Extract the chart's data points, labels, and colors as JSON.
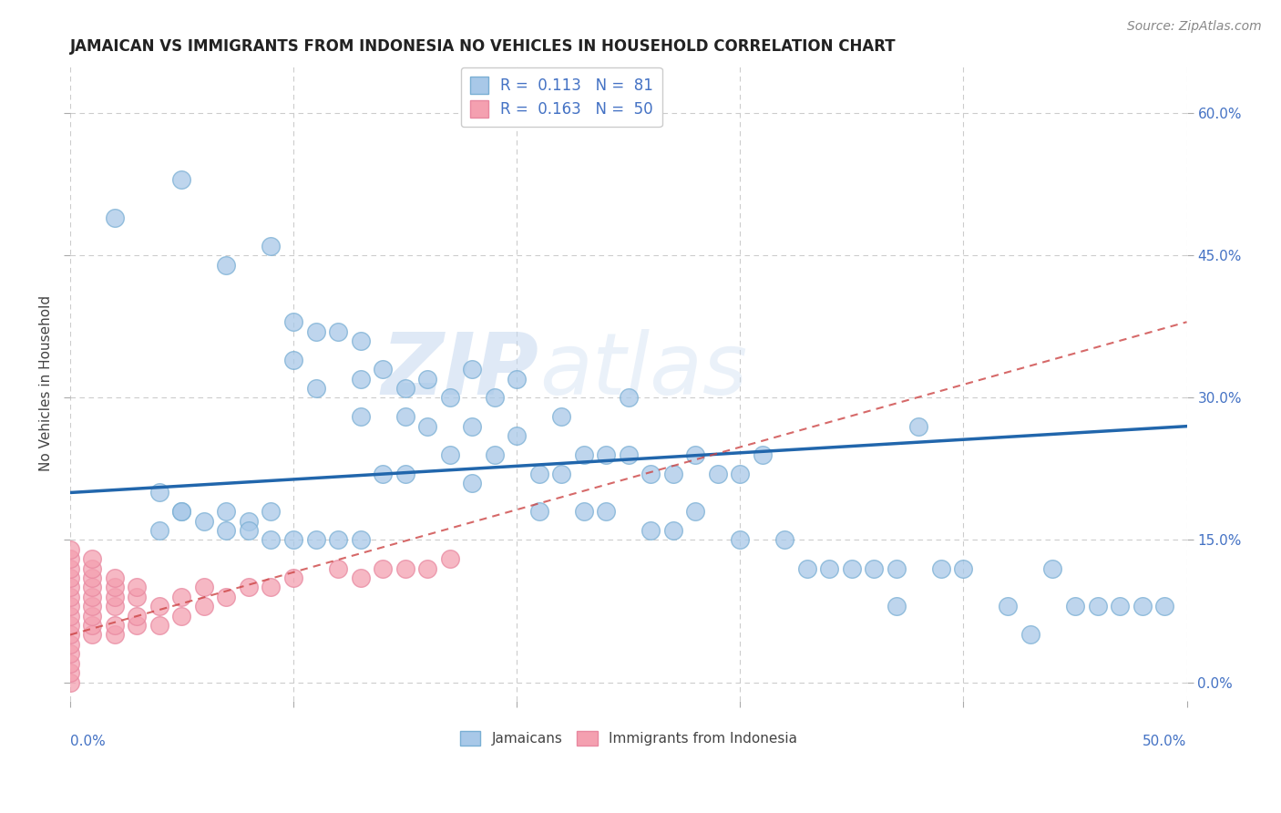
{
  "title": "JAMAICAN VS IMMIGRANTS FROM INDONESIA NO VEHICLES IN HOUSEHOLD CORRELATION CHART",
  "source": "Source: ZipAtlas.com",
  "ylabel": "No Vehicles in Household",
  "right_yticks": [
    "0.0%",
    "15.0%",
    "30.0%",
    "45.0%",
    "60.0%"
  ],
  "right_ytick_vals": [
    0.0,
    0.15,
    0.3,
    0.45,
    0.6
  ],
  "xlim": [
    0.0,
    0.5
  ],
  "ylim": [
    -0.02,
    0.65
  ],
  "legend1_R": "0.113",
  "legend1_N": "81",
  "legend2_R": "0.163",
  "legend2_N": "50",
  "blue_color": "#a8c8e8",
  "pink_color": "#f4a0b0",
  "blue_line_color": "#2166ac",
  "pink_line_color": "#cc4444",
  "watermark_zip": "ZIP",
  "watermark_atlas": "atlas",
  "blue_line_y0": 0.2,
  "blue_line_y1": 0.27,
  "pink_line_y0": 0.05,
  "pink_line_y1": 0.38,
  "jamaican_x": [
    0.02,
    0.05,
    0.07,
    0.09,
    0.1,
    0.1,
    0.11,
    0.11,
    0.12,
    0.13,
    0.13,
    0.13,
    0.14,
    0.14,
    0.15,
    0.15,
    0.15,
    0.16,
    0.16,
    0.17,
    0.17,
    0.18,
    0.18,
    0.18,
    0.19,
    0.19,
    0.2,
    0.2,
    0.21,
    0.21,
    0.22,
    0.22,
    0.23,
    0.23,
    0.24,
    0.24,
    0.25,
    0.25,
    0.26,
    0.26,
    0.27,
    0.27,
    0.28,
    0.28,
    0.29,
    0.3,
    0.3,
    0.31,
    0.32,
    0.33,
    0.34,
    0.35,
    0.36,
    0.37,
    0.37,
    0.38,
    0.39,
    0.4,
    0.42,
    0.43,
    0.44,
    0.45,
    0.46,
    0.47,
    0.48,
    0.49,
    0.05,
    0.07,
    0.08,
    0.09,
    0.1,
    0.11,
    0.12,
    0.13,
    0.04,
    0.04,
    0.05,
    0.06,
    0.07,
    0.08,
    0.09
  ],
  "jamaican_y": [
    0.49,
    0.53,
    0.44,
    0.46,
    0.38,
    0.34,
    0.37,
    0.31,
    0.37,
    0.36,
    0.32,
    0.28,
    0.33,
    0.22,
    0.31,
    0.28,
    0.22,
    0.32,
    0.27,
    0.3,
    0.24,
    0.33,
    0.27,
    0.21,
    0.3,
    0.24,
    0.32,
    0.26,
    0.22,
    0.18,
    0.28,
    0.22,
    0.24,
    0.18,
    0.24,
    0.18,
    0.3,
    0.24,
    0.22,
    0.16,
    0.22,
    0.16,
    0.24,
    0.18,
    0.22,
    0.22,
    0.15,
    0.24,
    0.15,
    0.12,
    0.12,
    0.12,
    0.12,
    0.12,
    0.08,
    0.27,
    0.12,
    0.12,
    0.08,
    0.05,
    0.12,
    0.08,
    0.08,
    0.08,
    0.08,
    0.08,
    0.18,
    0.18,
    0.17,
    0.18,
    0.15,
    0.15,
    0.15,
    0.15,
    0.2,
    0.16,
    0.18,
    0.17,
    0.16,
    0.16,
    0.15
  ],
  "indonesia_x": [
    0.0,
    0.0,
    0.0,
    0.0,
    0.0,
    0.0,
    0.0,
    0.0,
    0.0,
    0.0,
    0.0,
    0.0,
    0.0,
    0.0,
    0.0,
    0.01,
    0.01,
    0.01,
    0.01,
    0.01,
    0.01,
    0.01,
    0.01,
    0.01,
    0.02,
    0.02,
    0.02,
    0.02,
    0.02,
    0.02,
    0.03,
    0.03,
    0.03,
    0.03,
    0.04,
    0.04,
    0.05,
    0.05,
    0.06,
    0.06,
    0.07,
    0.08,
    0.09,
    0.1,
    0.12,
    0.13,
    0.14,
    0.15,
    0.16,
    0.17
  ],
  "indonesia_y": [
    0.0,
    0.01,
    0.02,
    0.03,
    0.04,
    0.05,
    0.06,
    0.07,
    0.08,
    0.09,
    0.1,
    0.11,
    0.12,
    0.13,
    0.14,
    0.05,
    0.06,
    0.07,
    0.08,
    0.09,
    0.1,
    0.11,
    0.12,
    0.13,
    0.05,
    0.06,
    0.08,
    0.09,
    0.1,
    0.11,
    0.06,
    0.07,
    0.09,
    0.1,
    0.06,
    0.08,
    0.07,
    0.09,
    0.08,
    0.1,
    0.09,
    0.1,
    0.1,
    0.11,
    0.12,
    0.11,
    0.12,
    0.12,
    0.12,
    0.13
  ]
}
